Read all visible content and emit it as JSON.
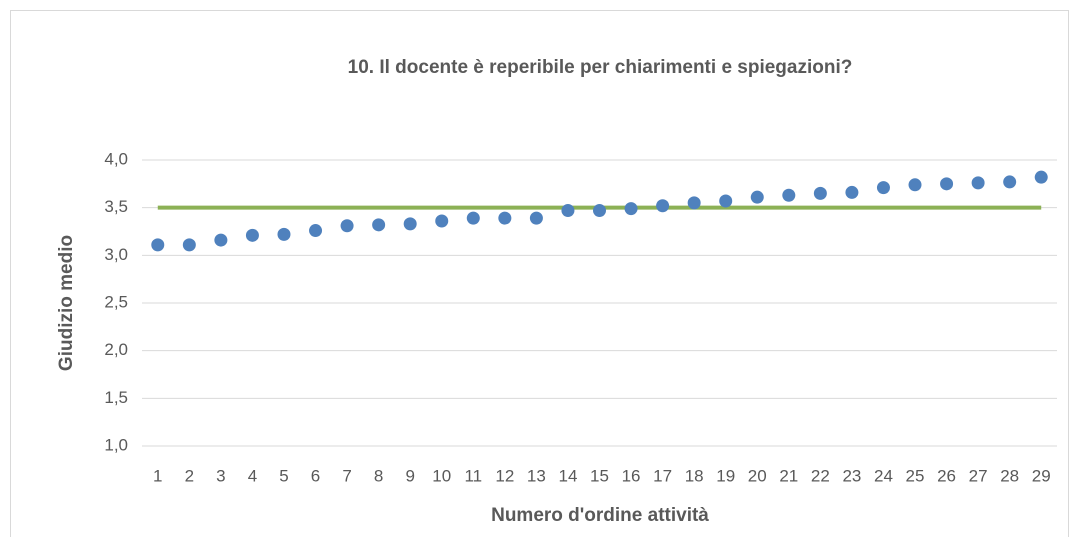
{
  "chart_data": {
    "type": "scatter",
    "title": "10. Il docente è reperibile per chiarimenti e spiegazioni?",
    "x_label": "Numero d'ordine attività",
    "y_label": "Giudizio medio",
    "categories": [
      "1",
      "2",
      "3",
      "4",
      "5",
      "6",
      "7",
      "8",
      "9",
      "10",
      "11",
      "12",
      "13",
      "14",
      "15",
      "16",
      "17",
      "18",
      "19",
      "20",
      "21",
      "22",
      "23",
      "24",
      "25",
      "26",
      "27",
      "28",
      "29"
    ],
    "series": [
      {
        "color": "#4f81bd",
        "values": [
          3.11,
          3.11,
          3.16,
          3.21,
          3.22,
          3.26,
          3.31,
          3.32,
          3.33,
          3.36,
          3.39,
          3.39,
          3.39,
          3.47,
          3.47,
          3.49,
          3.52,
          3.55,
          3.57,
          3.61,
          3.63,
          3.65,
          3.66,
          3.71,
          3.74,
          3.75,
          3.76,
          3.77,
          3.82
        ]
      }
    ],
    "reference_line": {
      "value": 3.5,
      "color": "#8cb155"
    },
    "ylim": [
      1.0,
      4.0
    ],
    "yticks": [
      {
        "value": 1.0,
        "label": "1,0"
      },
      {
        "value": 1.5,
        "label": "1,5"
      },
      {
        "value": 2.0,
        "label": "2,0"
      },
      {
        "value": 2.5,
        "label": "2,5"
      },
      {
        "value": 3.0,
        "label": "3,0"
      },
      {
        "value": 3.5,
        "label": "3,5"
      },
      {
        "value": 4.0,
        "label": "4,0"
      }
    ],
    "grid": true
  }
}
